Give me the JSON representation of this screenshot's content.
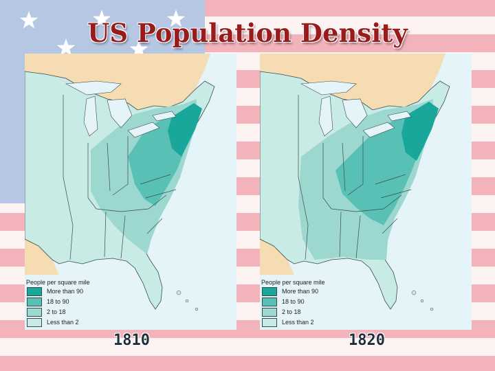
{
  "title": "US Population Density",
  "colors": {
    "water": "#e4f4f8",
    "land_foreign": "#f5dcb3",
    "more_than_90": "#19a69b",
    "18_to_90": "#59c0b6",
    "2_to_18": "#9cd8d0",
    "less_than_2": "#c9ebe5",
    "flag_red": "#f3b3ba",
    "flag_blue": "#b6c7e3"
  },
  "icons": [
    "star-icon"
  ],
  "maps": [
    {
      "year": "1810",
      "legend": {
        "title": "People per square mile",
        "items": [
          {
            "label": "More than 90",
            "color": "#19a69b"
          },
          {
            "label": "18 to 90",
            "color": "#59c0b6"
          },
          {
            "label": "2 to 18",
            "color": "#9cd8d0"
          },
          {
            "label": "Less than 2",
            "color": "#c9ebe5"
          }
        ]
      }
    },
    {
      "year": "1820",
      "legend": {
        "title": "People per square mile",
        "items": [
          {
            "label": "More than 90",
            "color": "#19a69b"
          },
          {
            "label": "18 to 90",
            "color": "#59c0b6"
          },
          {
            "label": "2 to 18",
            "color": "#9cd8d0"
          },
          {
            "label": "Less than 2",
            "color": "#c9ebe5"
          }
        ]
      }
    }
  ]
}
